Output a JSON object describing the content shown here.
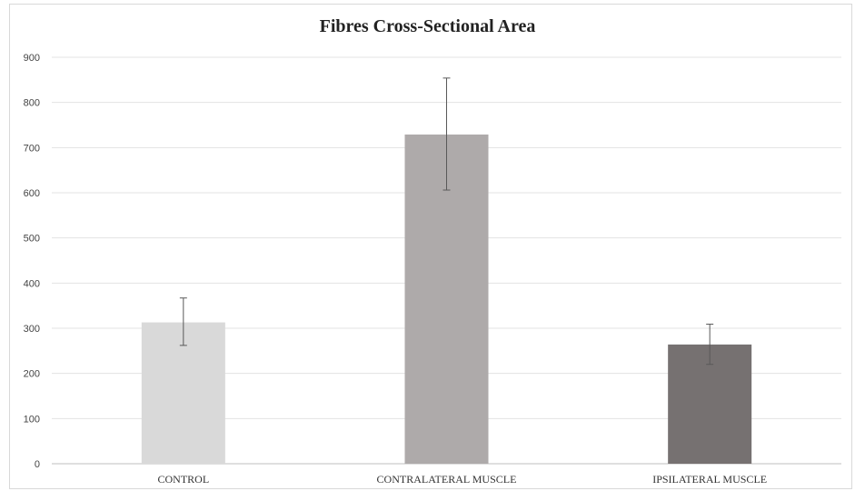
{
  "chart_data": {
    "type": "bar",
    "title": "Fibres Cross-Sectional Area",
    "xlabel": "",
    "ylabel": "",
    "categories": [
      "CONTROL",
      "CONTRALATERAL MUSCLE",
      "IPSILATERAL MUSCLE"
    ],
    "values": [
      313,
      729,
      264
    ],
    "error_low": [
      262,
      606,
      220
    ],
    "error_high": [
      367,
      854,
      309
    ],
    "colors": [
      "#d9d9d9",
      "#aeaaaa",
      "#767171"
    ],
    "ylim": [
      0,
      900
    ],
    "yticks": [
      "0",
      "100",
      "200",
      "300",
      "400",
      "500",
      "600",
      "700",
      "800",
      "900"
    ],
    "grid": true,
    "legend": "none"
  }
}
